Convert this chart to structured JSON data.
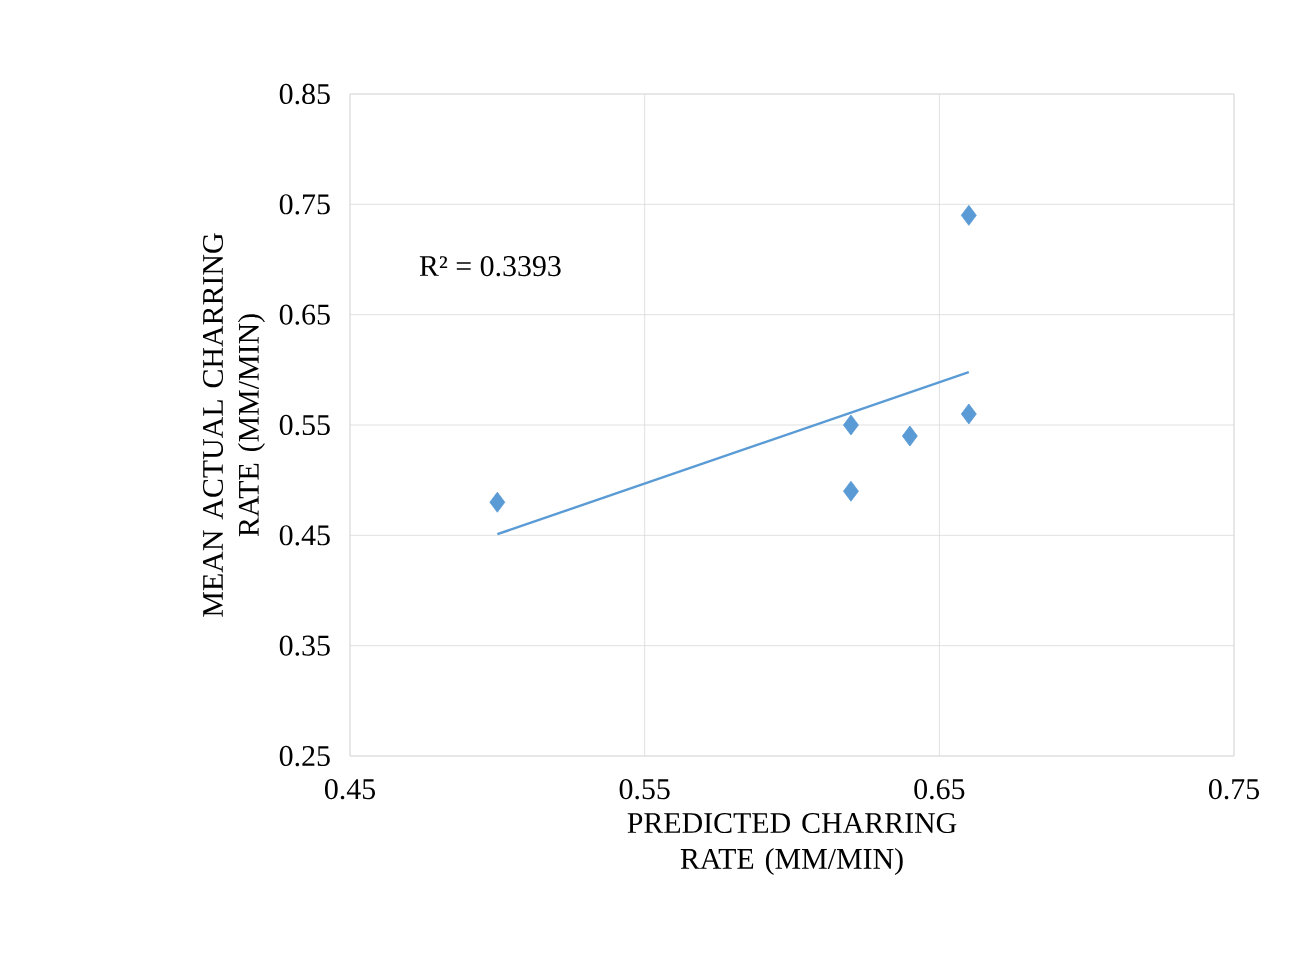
{
  "chart_data": {
    "type": "scatter",
    "xlabel": "PREDICTED CHARRING RATE (MM/MIN)",
    "ylabel": "MEAN ACTUAL CHARRING RATE (MM/MIN)",
    "series": [
      {
        "color": "#5b9bd5",
        "marker": "diamond",
        "x": [
          0.5,
          0.62,
          0.62,
          0.64,
          0.66,
          0.66
        ],
        "values": [
          0.48,
          0.55,
          0.49,
          0.54,
          0.74,
          0.56
        ]
      },
      {
        "type": "line",
        "color": "#5b9bd5",
        "marker": "none",
        "x": [
          0.5,
          0.66
        ],
        "values": [
          0.451,
          0.598
        ]
      }
    ],
    "annotations": [
      "R² = 0.3393"
    ],
    "xlim": [
      0.45,
      0.75
    ],
    "xticks": [
      0.45,
      0.55,
      0.65,
      0.75
    ],
    "ylim": [
      0.25,
      0.85
    ],
    "yticks": [
      0.25,
      0.35,
      0.45,
      0.55,
      0.65,
      0.75,
      0.85
    ],
    "grid": true
  }
}
